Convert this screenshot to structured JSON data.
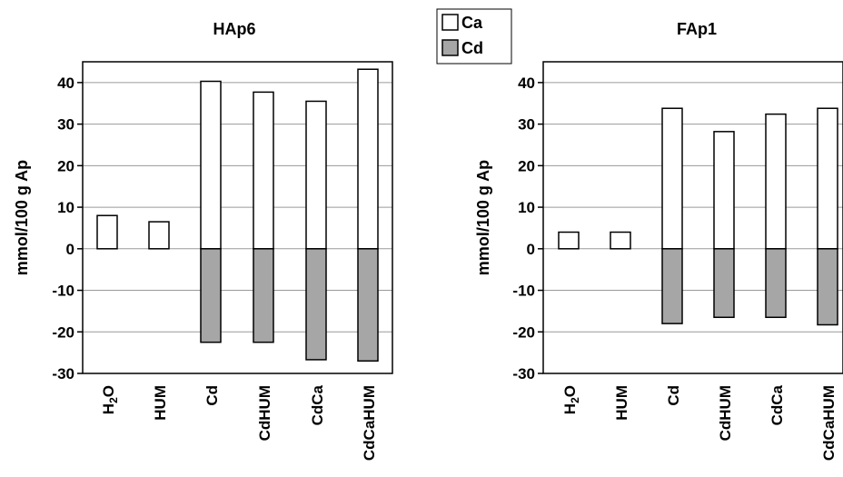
{
  "legend": [
    {
      "label": "Ca",
      "color": "#ffffff"
    },
    {
      "label": "Cd",
      "color": "#a6a6a6"
    }
  ],
  "chart_data": [
    {
      "type": "bar",
      "title": "HAp6",
      "ylabel": "mmol/100 g Ap",
      "ylim": [
        -30,
        45
      ],
      "yticks": [
        40,
        30,
        20,
        10,
        0,
        -10,
        -20,
        -30
      ],
      "grid": true,
      "categories": [
        "H2O",
        "HUM",
        "Cd",
        "CdHUM",
        "CdCa",
        "CdCaHUM"
      ],
      "series": [
        {
          "name": "Ca",
          "color": "#ffffff",
          "values": [
            8,
            6.5,
            40.3,
            37.7,
            35.5,
            43.2
          ]
        },
        {
          "name": "Cd",
          "color": "#a6a6a6",
          "values": [
            0,
            0,
            -22.5,
            -22.5,
            -26.7,
            -27
          ]
        }
      ]
    },
    {
      "type": "bar",
      "title": "FAp1",
      "ylabel": "mmol/100 g Ap",
      "ylim": [
        -30,
        45
      ],
      "yticks": [
        40,
        30,
        20,
        10,
        0,
        -10,
        -20,
        -30
      ],
      "grid": true,
      "categories": [
        "H2O",
        "HUM",
        "Cd",
        "CdHUM",
        "CdCa",
        "CdCaHUM"
      ],
      "series": [
        {
          "name": "Ca",
          "color": "#ffffff",
          "values": [
            4,
            4,
            33.8,
            28.2,
            32.4,
            33.8
          ]
        },
        {
          "name": "Cd",
          "color": "#a6a6a6",
          "values": [
            0,
            0,
            -18,
            -16.5,
            -16.5,
            -18.3
          ]
        }
      ]
    }
  ]
}
